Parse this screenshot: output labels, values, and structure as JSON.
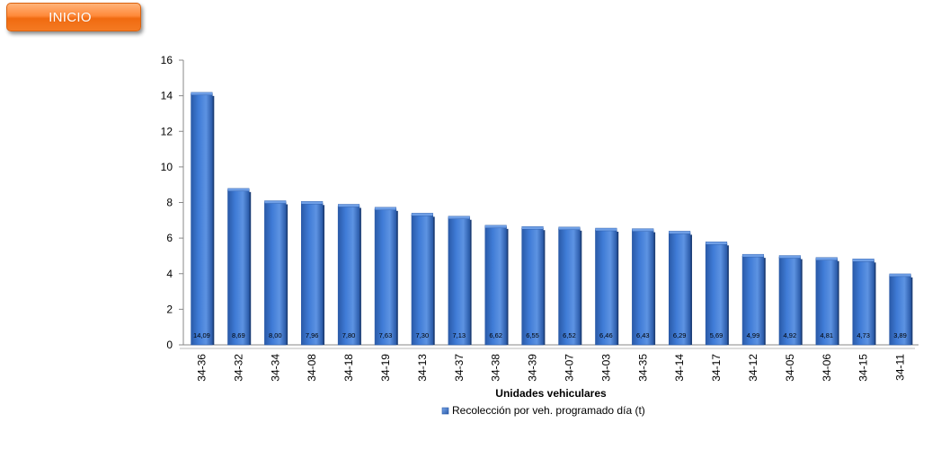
{
  "nav": {
    "inicio_label": "INICIO"
  },
  "colors": {
    "bar": "#3f7bd6",
    "bar_dark": "#2a5aa8",
    "bar_top": "#6f9fe6",
    "button": "#f47a22"
  },
  "chart_data": {
    "type": "bar",
    "title": "",
    "xlabel": "Unidades vehiculares",
    "ylabel": "",
    "ylim": [
      0,
      16
    ],
    "yticks": [
      0,
      2,
      4,
      6,
      8,
      10,
      12,
      14,
      16
    ],
    "grid": false,
    "legend_position": "bottom",
    "categories": [
      "34-36",
      "34-32",
      "34-34",
      "34-08",
      "34-18",
      "34-19",
      "34-13",
      "34-37",
      "34-38",
      "34-39",
      "34-07",
      "34-03",
      "34-35",
      "34-14",
      "34-17",
      "34-12",
      "34-05",
      "34-06",
      "34-15",
      "34-11"
    ],
    "series": [
      {
        "name": "Recolección por veh. programado día (t)",
        "values": [
          14.09,
          8.69,
          8.0,
          7.96,
          7.8,
          7.63,
          7.3,
          7.13,
          6.62,
          6.55,
          6.52,
          6.46,
          6.43,
          6.29,
          5.69,
          4.99,
          4.92,
          4.81,
          4.73,
          3.89
        ],
        "data_labels": [
          "14,09",
          "8,69",
          "8,00",
          "7,96",
          "7,80",
          "7,63",
          "7,30",
          "7,13",
          "6,62",
          "6,55",
          "6,52",
          "6,46",
          "6,43",
          "6,29",
          "5,69",
          "4,99",
          "4,92",
          "4,81",
          "4,73",
          "3,89"
        ]
      }
    ]
  }
}
